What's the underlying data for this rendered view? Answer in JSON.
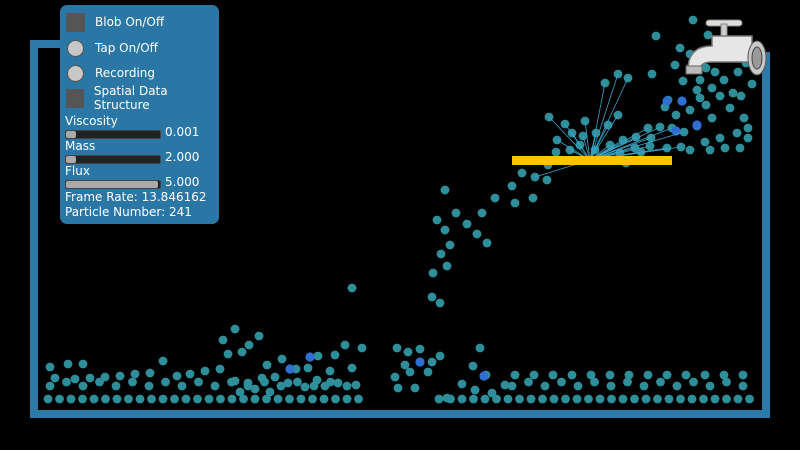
{
  "controls": {
    "blob": {
      "label": "Blob On/Off"
    },
    "tap": {
      "label": "Tap On/Off"
    },
    "recording": {
      "label": "Recording"
    },
    "spatial": {
      "label": "Spatial Data Structure"
    }
  },
  "sliders": {
    "viscosity": {
      "label": "Viscosity",
      "value": "0.001",
      "fill": 0.1
    },
    "mass": {
      "label": "Mass",
      "value": "2.000",
      "fill": 0.1
    },
    "flux": {
      "label": "Flux",
      "value": "5.000",
      "fill": 0.98
    }
  },
  "stats": {
    "frame_rate_label": "Frame Rate:",
    "frame_rate": "13.846162",
    "particle_label": "Particle Number:",
    "particle_count": "241"
  },
  "colors": {
    "container": "#2d7aa8",
    "panel": "#2a77a6",
    "particle": "#2e8f9a",
    "particle_highlight": "#2f6fd4",
    "obstacle": "#ffc600"
  }
}
